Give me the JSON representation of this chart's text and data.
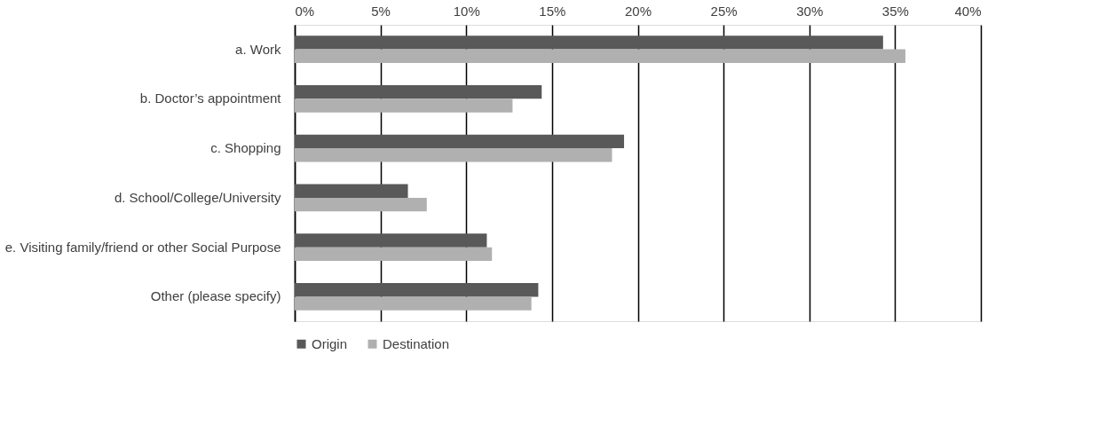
{
  "chart_data": {
    "type": "bar",
    "orientation": "horizontal",
    "categories": [
      "a. Work",
      "b. Doctor’s appointment",
      "c. Shopping",
      "d. School/College/University",
      "e. Visiting family/friend or other Social Purpose",
      "Other (please specify)"
    ],
    "series": [
      {
        "name": "Origin",
        "color": "#595959",
        "values": [
          34.3,
          14.4,
          19.2,
          6.6,
          11.2,
          14.2
        ]
      },
      {
        "name": "Destination",
        "color": "#b0b0b0",
        "values": [
          35.6,
          12.7,
          18.5,
          7.7,
          11.5,
          13.8
        ]
      }
    ],
    "xlim": [
      0,
      40
    ],
    "xticks": [
      {
        "value": 0,
        "label": "0%"
      },
      {
        "value": 5,
        "label": "5%"
      },
      {
        "value": 10,
        "label": "10%"
      },
      {
        "value": 15,
        "label": "15%"
      },
      {
        "value": 20,
        "label": "20%"
      },
      {
        "value": 25,
        "label": "25%"
      },
      {
        "value": 30,
        "label": "30%"
      },
      {
        "value": 35,
        "label": "35%"
      },
      {
        "value": 40,
        "label": "40%"
      }
    ],
    "grid": "x",
    "legend": "bottom"
  }
}
